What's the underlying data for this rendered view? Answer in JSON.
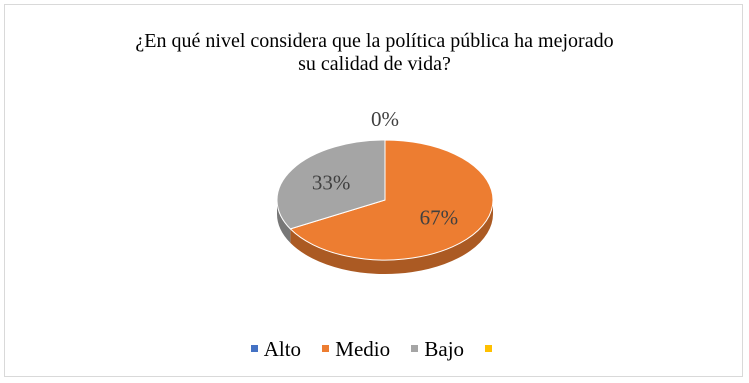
{
  "chart_data": {
    "type": "pie",
    "title_lines": [
      "¿En qué nivel considera que la política pública ha mejorado",
      "su calidad de vida?"
    ],
    "categories": [
      "Alto",
      "Medio",
      "Bajo",
      ""
    ],
    "values": [
      0,
      67,
      33,
      0
    ],
    "labels": [
      "0%",
      "67%",
      "33%",
      ""
    ],
    "colors": [
      "#4472c4",
      "#ed7d31",
      "#a5a5a5",
      "#ffc000"
    ],
    "style": "3d",
    "legend": "bottom"
  }
}
